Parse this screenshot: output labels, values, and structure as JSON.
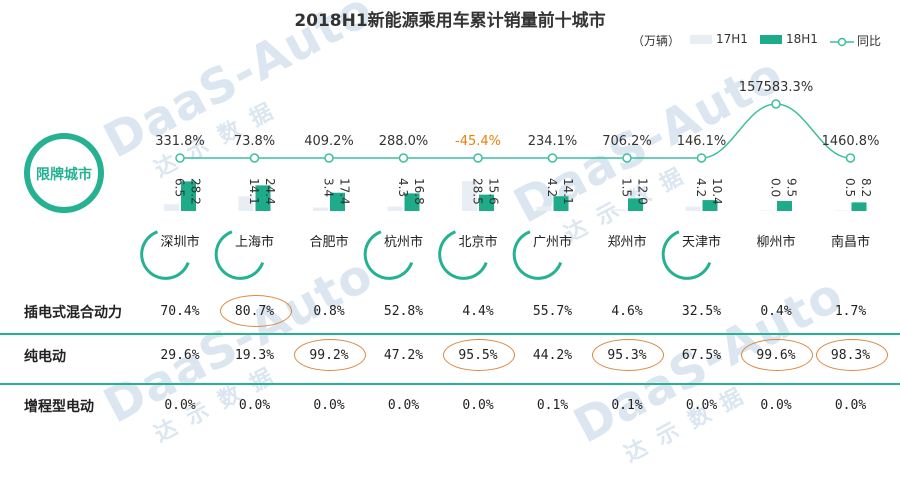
{
  "chart_data": {
    "type": "bar",
    "title": "2018H1新能源乘用车累计销量前十城市",
    "unit": "（万辆）",
    "categories": [
      "深圳市",
      "上海市",
      "合肥市",
      "杭州市",
      "北京市",
      "广州市",
      "郑州市",
      "天津市",
      "柳州市",
      "南昌市"
    ],
    "series": [
      {
        "name": "17H1",
        "values": [
          6.5,
          14.1,
          3.4,
          4.3,
          28.5,
          4.2,
          1.5,
          4.2,
          0.0,
          0.5
        ],
        "labels": [
          "6.5",
          "14.1",
          "3.4",
          "4.3",
          "28.5",
          "4.2",
          "1.5",
          "4.2",
          "0.0",
          "0.5"
        ]
      },
      {
        "name": "18H1",
        "values": [
          28.2,
          24.4,
          17.4,
          16.8,
          15.6,
          14.1,
          12.0,
          10.4,
          9.5,
          8.2
        ],
        "labels": [
          "28.2",
          "24.4",
          "17.4",
          "16.8",
          "15.6",
          "14.1",
          "12.0",
          "10.4",
          "9.5",
          "8.2"
        ]
      },
      {
        "name": "同比",
        "labels": [
          "331.8%",
          "73.8%",
          "409.2%",
          "288.0%",
          "-45.4%",
          "234.1%",
          "706.2%",
          "146.1%",
          "157583.3%",
          "1460.8%"
        ]
      }
    ],
    "highlight_label": "限牌城市",
    "restricted_cities": [
      "深圳市",
      "上海市",
      "杭州市",
      "北京市",
      "广州市",
      "天津市"
    ],
    "legend_position": "top-right"
  },
  "colors": {
    "bar17": "#e9eef5",
    "bar18": "#1dab8a",
    "yoy": "#3dbf9f",
    "negative": "#e8820c",
    "circle": "#d98a43",
    "accent": "#26b193"
  },
  "watermark": {
    "brand": "DaaS-Auto",
    "cn": "达示数据"
  },
  "table": {
    "rows": [
      {
        "label": "插电式混合动力",
        "values": [
          "70.4%",
          "80.7%",
          "0.8%",
          "52.8%",
          "4.4%",
          "55.7%",
          "4.6%",
          "32.5%",
          "0.4%",
          "1.7%"
        ],
        "circled": [
          1
        ]
      },
      {
        "label": "纯电动",
        "values": [
          "29.6%",
          "19.3%",
          "99.2%",
          "47.2%",
          "95.5%",
          "44.2%",
          "95.3%",
          "67.5%",
          "99.6%",
          "98.3%"
        ],
        "circled": [
          2,
          4,
          6,
          8,
          9
        ]
      },
      {
        "label": "增程型电动",
        "values": [
          "0.0%",
          "0.0%",
          "0.0%",
          "0.0%",
          "0.0%",
          "0.1%",
          "0.1%",
          "0.0%",
          "0.0%",
          "0.0%"
        ],
        "circled": []
      }
    ]
  }
}
